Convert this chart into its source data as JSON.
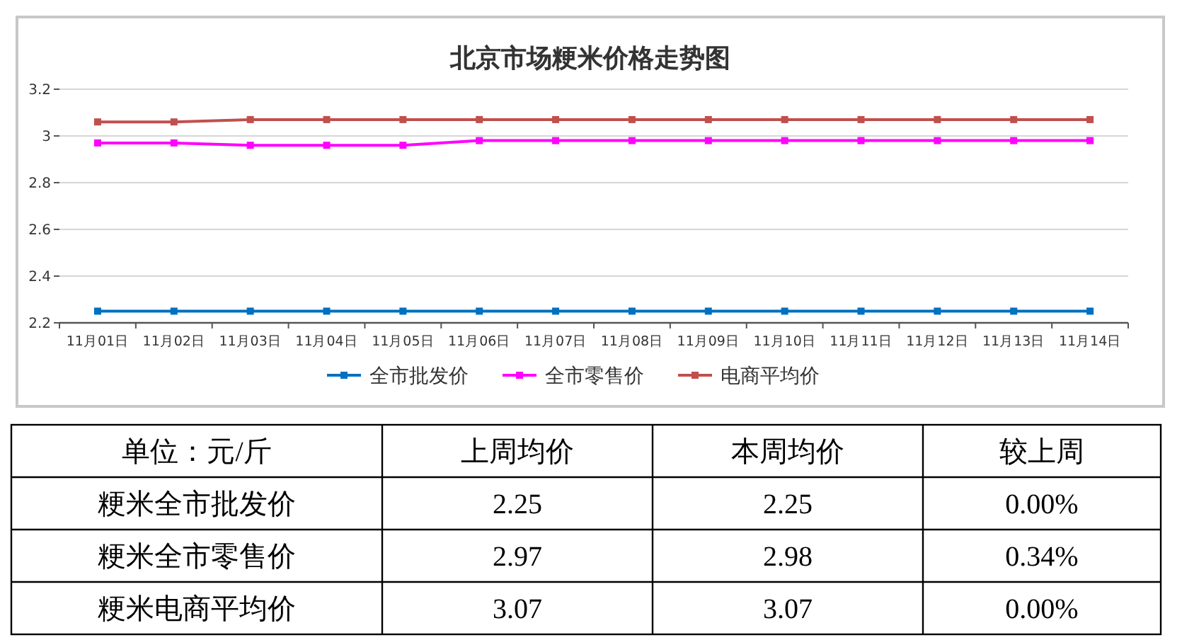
{
  "chart_data": [
    {
      "type": "line",
      "title": "北京市场粳米价格走势图",
      "categories": [
        "11月01日",
        "11月02日",
        "11月03日",
        "11月04日",
        "11月05日",
        "11月06日",
        "11月07日",
        "11月08日",
        "11月09日",
        "11月10日",
        "11月11日",
        "11月12日",
        "11月13日",
        "11月14日"
      ],
      "series": [
        {
          "name": "全市批发价",
          "color": "#0070c0",
          "values": [
            2.25,
            2.25,
            2.25,
            2.25,
            2.25,
            2.25,
            2.25,
            2.25,
            2.25,
            2.25,
            2.25,
            2.25,
            2.25,
            2.25
          ]
        },
        {
          "name": "全市零售价",
          "color": "#ff00ff",
          "values": [
            2.97,
            2.97,
            2.96,
            2.96,
            2.96,
            2.98,
            2.98,
            2.98,
            2.98,
            2.98,
            2.98,
            2.98,
            2.98,
            2.98
          ]
        },
        {
          "name": "电商平均价",
          "color": "#c0504d",
          "values": [
            3.06,
            3.06,
            3.07,
            3.07,
            3.07,
            3.07,
            3.07,
            3.07,
            3.07,
            3.07,
            3.07,
            3.07,
            3.07,
            3.07
          ]
        }
      ],
      "ylim": [
        2.2,
        3.2
      ],
      "yticks": [
        2.2,
        2.4,
        2.6,
        2.8,
        3,
        3.2
      ],
      "grid": "y",
      "legend": "bottom",
      "marker": "square",
      "line_style": "solid"
    },
    {
      "type": "other",
      "annotations": [
        "单位：元/斤",
        "上周均价",
        "本周均价",
        "较上周",
        "粳米全市批发价",
        "2.25",
        "2.25",
        "0.00%",
        "粳米全市零售价",
        "2.97",
        "2.98",
        "0.34%",
        "粳米电商平均价",
        "3.07",
        "3.07",
        "0.00%"
      ]
    }
  ]
}
